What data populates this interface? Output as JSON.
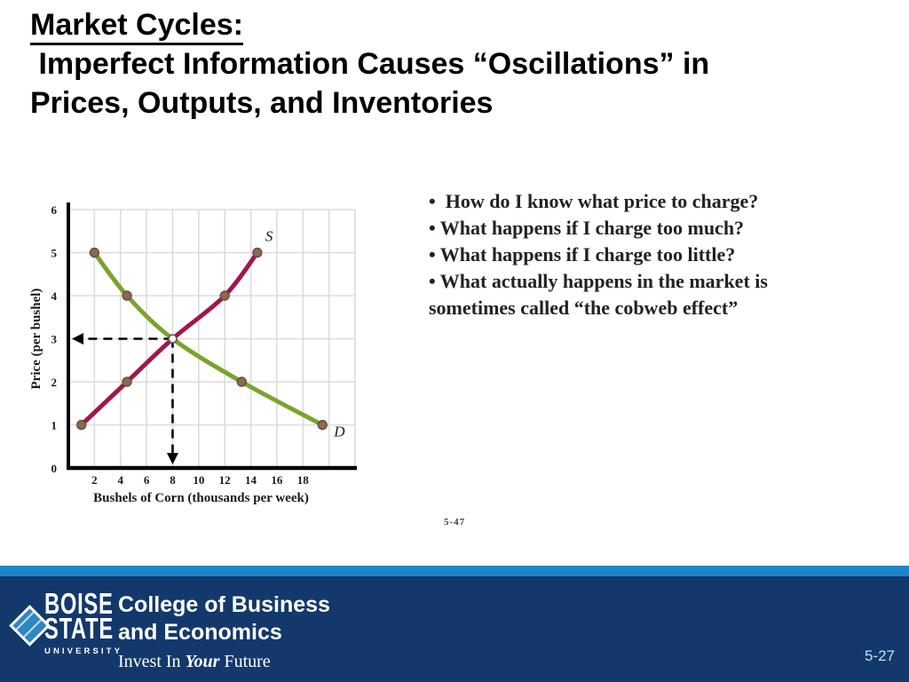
{
  "title": {
    "lines": [
      "Market Cycles:",
      " Imperfect Information Causes “Oscillations” in",
      "Prices, Outputs, and Inventories"
    ]
  },
  "bullets": [
    "•  How do I know what price to charge?",
    "• What happens if I charge too much?",
    "• What happens if I charge too little?",
    "• What actually happens in the market is sometimes called “the cobweb effect”"
  ],
  "figure_number": "5-47",
  "chart_data": {
    "type": "line",
    "title": "",
    "xlabel": "Bushels of Corn (thousands per week)",
    "ylabel": "Price (per bushel)",
    "xlim": [
      0,
      22
    ],
    "ylim": [
      0,
      6
    ],
    "x_ticks": [
      2,
      4,
      6,
      8,
      10,
      12,
      14,
      16,
      18
    ],
    "y_ticks": [
      0,
      1,
      2,
      3,
      4,
      5,
      6
    ],
    "grid": true,
    "legend": "inline-curve-labels",
    "series": [
      {
        "name": "S",
        "color": "#a2174c",
        "points": [
          [
            1,
            1
          ],
          [
            4.5,
            2
          ],
          [
            8,
            3
          ],
          [
            12,
            4
          ],
          [
            14.5,
            5
          ]
        ]
      },
      {
        "name": "D",
        "color": "#7aa32c",
        "points": [
          [
            2,
            5
          ],
          [
            4.5,
            4
          ],
          [
            8,
            3
          ],
          [
            13.3,
            2
          ],
          [
            19.5,
            1
          ]
        ]
      }
    ],
    "equilibrium": {
      "quantity": 8,
      "price": 3
    },
    "point_color": "#8b6952",
    "point_edge_color": "#6a4c3a",
    "grid_color": "#dcdcdc",
    "axis_color": "#000000",
    "guide_color": "#000000"
  },
  "footer": {
    "stripe_color": "#1d86c8",
    "bar_color": "#13386b",
    "logo": {
      "line1": "BOISE",
      "line2": "STATE",
      "line3": "UNIVERSITY"
    },
    "college_line1": "College of Business",
    "college_line2": "and Economics",
    "tagline": {
      "pre": "Invest In ",
      "italic": "Your",
      "post": " Future"
    },
    "page_number": "5-27"
  }
}
